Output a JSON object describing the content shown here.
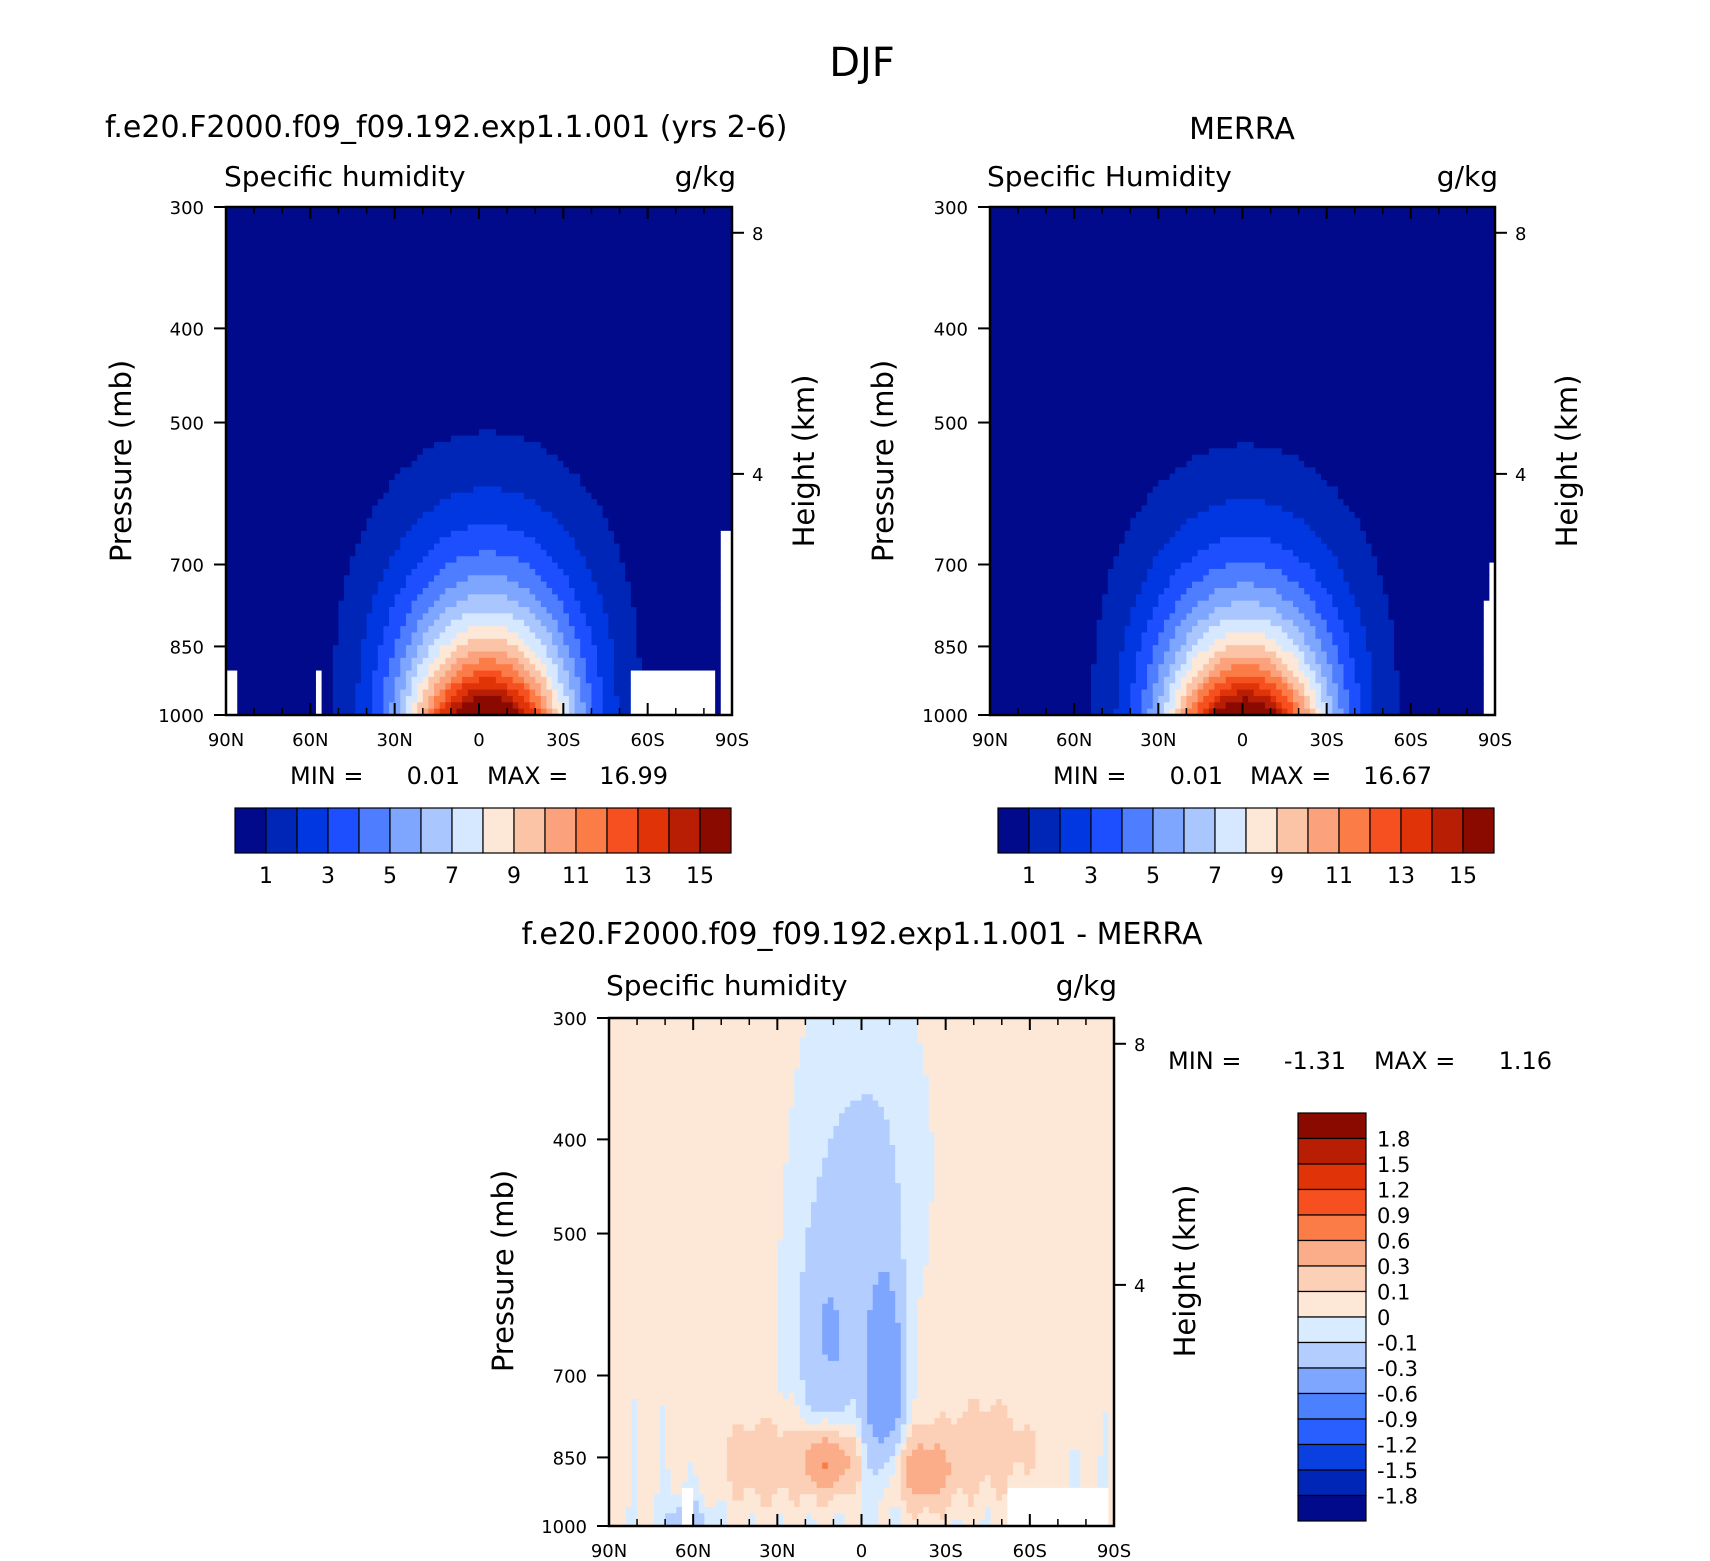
{
  "figure": {
    "title": "DJF",
    "panel_titles": {
      "model": "f.e20.F2000.f09_f09.192.exp1.1.001 (yrs 2-6)",
      "obs": "MERRA",
      "diff": "f.e20.F2000.f09_f09.192.exp1.1.001 - MERRA"
    },
    "colors": {
      "abs_levels": [
        "#000a8a",
        "#0026b8",
        "#0037e0",
        "#1d4fff",
        "#4f7dff",
        "#7fa6ff",
        "#aac6ff",
        "#d6e8ff",
        "#fde8d8",
        "#fcc4a6",
        "#fba27c",
        "#fb7c47",
        "#f75020",
        "#e03408",
        "#b81e04",
        "#8a0a00"
      ],
      "diff_levels": [
        "#000a8a",
        "#0026b8",
        "#0a3fe0",
        "#2a5fff",
        "#4b80ff",
        "#7fa6ff",
        "#b3cdff",
        "#d9ecff",
        "#fde8d8",
        "#fcd0b6",
        "#fbac88",
        "#fb7c47",
        "#f75020",
        "#e03408",
        "#b81e04",
        "#8a0a00"
      ],
      "missing": "#ffffff"
    }
  },
  "chart_data": [
    {
      "type": "heatmap",
      "title": "f.e20.F2000.f09_f09.192.exp1.1.001 (yrs 2-6)",
      "left_label": "Specific humidity",
      "right_label": "g/kg",
      "ylabel": "Pressure (mb)",
      "y2label": "Height (km)",
      "x_ticks": [
        "90N",
        "60N",
        "30N",
        "0",
        "30S",
        "60S",
        "90S"
      ],
      "xlim": [
        90,
        -90
      ],
      "y_ticks": [
        300,
        400,
        500,
        700,
        850,
        1000
      ],
      "ylim": [
        1000,
        300
      ],
      "y2_ticks": [
        8,
        4
      ],
      "stats": {
        "min_label": "MIN =",
        "min": "0.01",
        "max_label": "MAX =",
        "max": "16.99"
      },
      "colorbar_labels": [
        "1",
        "3",
        "5",
        "7",
        "9",
        "11",
        "13",
        "15"
      ],
      "levels": [
        0,
        1,
        2,
        3,
        4,
        5,
        6,
        7,
        8,
        9,
        10,
        11,
        12,
        13,
        14,
        15,
        16
      ],
      "peak": 16.99
    },
    {
      "type": "heatmap",
      "title": "MERRA",
      "left_label": "Specific Humidity",
      "right_label": "g/kg",
      "ylabel": "Pressure (mb)",
      "y2label": "Height (km)",
      "x_ticks": [
        "90N",
        "60N",
        "30N",
        "0",
        "30S",
        "60S",
        "90S"
      ],
      "xlim": [
        90,
        -90
      ],
      "y_ticks": [
        300,
        400,
        500,
        700,
        850,
        1000
      ],
      "ylim": [
        1000,
        300
      ],
      "y2_ticks": [
        8,
        4
      ],
      "stats": {
        "min_label": "MIN =",
        "min": "0.01",
        "max_label": "MAX =",
        "max": "16.67"
      },
      "colorbar_labels": [
        "1",
        "3",
        "5",
        "7",
        "9",
        "11",
        "13",
        "15"
      ],
      "levels": [
        0,
        1,
        2,
        3,
        4,
        5,
        6,
        7,
        8,
        9,
        10,
        11,
        12,
        13,
        14,
        15,
        16
      ],
      "peak": 16.67
    },
    {
      "type": "heatmap",
      "title": "f.e20.F2000.f09_f09.192.exp1.1.001 - MERRA",
      "left_label": "Specific humidity",
      "right_label": "g/kg",
      "ylabel": "Pressure (mb)",
      "y2label": "Height (km)",
      "x_ticks": [
        "90N",
        "60N",
        "30N",
        "0",
        "30S",
        "60S",
        "90S"
      ],
      "xlim": [
        90,
        -90
      ],
      "y_ticks": [
        300,
        400,
        500,
        700,
        850,
        1000
      ],
      "ylim": [
        1000,
        300
      ],
      "y2_ticks": [
        8,
        4
      ],
      "stats": {
        "min_label": "MIN =",
        "min": "-1.31",
        "max_label": "MAX =",
        "max": "1.16"
      },
      "colorbar_labels": [
        "1.8",
        "1.5",
        "1.2",
        "0.9",
        "0.6",
        "0.3",
        "0.1",
        "0",
        "-0.1",
        "-0.3",
        "-0.6",
        "-0.9",
        "-1.2",
        "-1.5",
        "-1.8"
      ],
      "levels": [
        -1.8,
        -1.5,
        -1.2,
        -0.9,
        -0.6,
        -0.3,
        -0.1,
        0,
        0.1,
        0.3,
        0.6,
        0.9,
        1.2,
        1.5,
        1.8
      ]
    }
  ]
}
